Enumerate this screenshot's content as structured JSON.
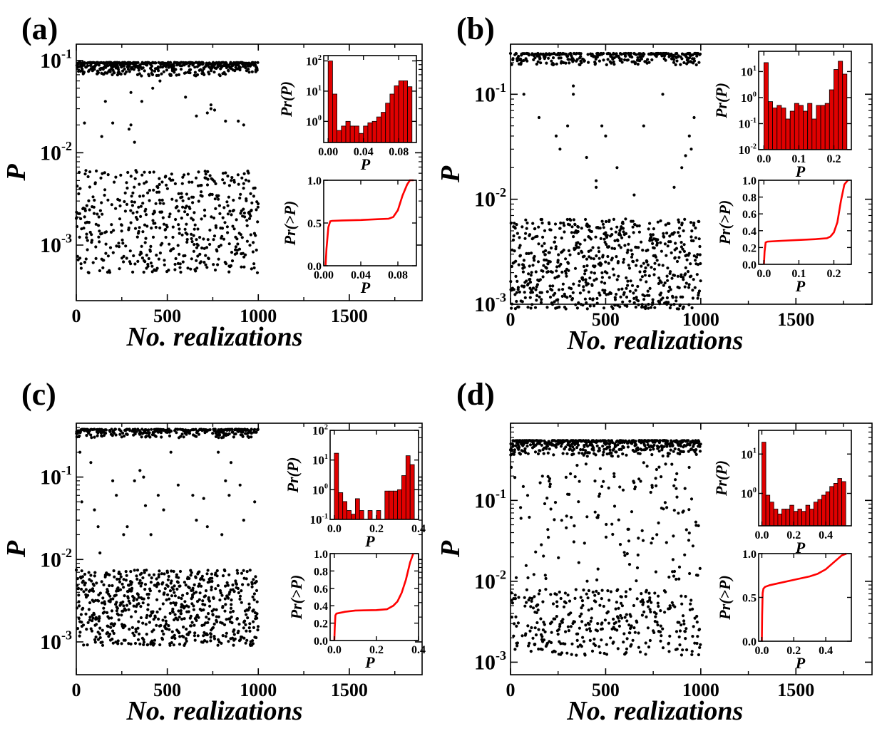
{
  "panel_labels": [
    "(a)",
    "(b)",
    "(c)",
    "(d)"
  ],
  "main_xlabel": "No. realizations",
  "main_ylabel": "P",
  "hist_ylabel": "Pr(P)",
  "cdf_ylabel": "Pr(>P)",
  "inset_xlabel": "P",
  "colors": {
    "bar_fill": "#e00000",
    "cdf_line": "#ff0000",
    "points": "#000000",
    "axes": "#000000"
  },
  "chart_data": [
    {
      "type": "scatter",
      "panel": "(a)",
      "xlabel": "No. realizations",
      "ylabel": "P",
      "xlim": [
        0,
        1900
      ],
      "x_ticks": [
        "0",
        "500",
        "1000",
        "1500"
      ],
      "ylog": true,
      "ylim": [
        0.00025,
        0.15
      ],
      "y_ticks": [
        {
          "v": 0.001,
          "t": "10^-3"
        },
        {
          "v": 0.01,
          "t": "10^-2"
        },
        {
          "v": 0.1,
          "t": "10^-1"
        }
      ],
      "n_points": 1000,
      "top_band": [
        0.068,
        0.095
      ],
      "bottom_band": [
        0.0005,
        0.0065
      ],
      "middle_points": [
        [
          45,
          0.021
        ],
        [
          140,
          0.015
        ],
        [
          160,
          0.036
        ],
        [
          200,
          0.021
        ],
        [
          290,
          0.018
        ],
        [
          300,
          0.02
        ],
        [
          320,
          0.013
        ],
        [
          360,
          0.036
        ],
        [
          460,
          0.06
        ],
        [
          660,
          0.025
        ],
        [
          720,
          0.027
        ],
        [
          740,
          0.03
        ],
        [
          760,
          0.029
        ],
        [
          740,
          0.033
        ],
        [
          820,
          0.022
        ],
        [
          890,
          0.022
        ],
        [
          920,
          0.02
        ],
        [
          420,
          0.05
        ],
        [
          300,
          0.045
        ],
        [
          600,
          0.04
        ]
      ],
      "hist": {
        "type": "bar",
        "xlim": [
          -0.005,
          0.1
        ],
        "x_ticks": [
          "0.00",
          "0.04",
          "0.08"
        ],
        "ylog": true,
        "ylim": [
          0.2,
          150
        ],
        "y_ticks": [
          {
            "v": 1,
            "t": "10^0"
          },
          {
            "v": 10,
            "t": "10^1"
          },
          {
            "v": 100,
            "t": "10^2"
          }
        ],
        "bin_width": 0.005,
        "bin_starts": [
          0.0,
          0.005,
          0.01,
          0.015,
          0.02,
          0.025,
          0.03,
          0.035,
          0.04,
          0.045,
          0.05,
          0.055,
          0.06,
          0.065,
          0.07,
          0.075,
          0.08,
          0.085,
          0.09
        ],
        "values": [
          100,
          8,
          0.5,
          0.7,
          1,
          0.7,
          0.7,
          0.4,
          0.7,
          0.9,
          1,
          1.4,
          2,
          4,
          8,
          15,
          22,
          22,
          14
        ],
        "xlabel": "P",
        "ylabel": "Pr(P)"
      },
      "cdf": {
        "type": "line",
        "xlim": [
          0,
          0.1
        ],
        "x_ticks": [
          "0.00",
          "0.04",
          "0.08"
        ],
        "ylim": [
          0,
          1
        ],
        "y_ticks": [
          "0.0",
          "0.5",
          "1.0"
        ],
        "x": [
          0.002,
          0.003,
          0.005,
          0.007,
          0.009,
          0.02,
          0.04,
          0.06,
          0.07,
          0.075,
          0.08,
          0.085,
          0.09,
          0.093,
          0.097
        ],
        "y": [
          0.0,
          0.2,
          0.45,
          0.52,
          0.525,
          0.53,
          0.535,
          0.545,
          0.55,
          0.57,
          0.65,
          0.82,
          0.95,
          1.0,
          1.0
        ],
        "xlabel": "P",
        "ylabel": "Pr(>P)"
      }
    },
    {
      "type": "scatter",
      "panel": "(b)",
      "xlabel": "No. realizations",
      "ylabel": "P",
      "xlim": [
        0,
        1900
      ],
      "x_ticks": [
        "0",
        "500",
        "1000",
        "1500"
      ],
      "ylog": true,
      "ylim": [
        0.001,
        0.3
      ],
      "y_ticks": [
        {
          "v": 0.001,
          "t": "10^-3"
        },
        {
          "v": 0.01,
          "t": "10^-2"
        },
        {
          "v": 0.1,
          "t": "10^-1"
        }
      ],
      "n_points": 1000,
      "top_band": [
        0.19,
        0.245
      ],
      "bottom_band": [
        0.0009,
        0.0065
      ],
      "middle_points": [
        [
          70,
          0.1
        ],
        [
          150,
          0.06
        ],
        [
          240,
          0.04
        ],
        [
          260,
          0.03
        ],
        [
          300,
          0.05
        ],
        [
          330,
          0.1
        ],
        [
          400,
          0.025
        ],
        [
          450,
          0.013
        ],
        [
          480,
          0.05
        ],
        [
          560,
          0.02
        ],
        [
          650,
          0.011
        ],
        [
          700,
          0.05
        ],
        [
          800,
          0.1
        ],
        [
          860,
          0.013
        ],
        [
          900,
          0.02
        ],
        [
          920,
          0.026
        ],
        [
          950,
          0.03
        ],
        [
          940,
          0.04
        ],
        [
          965,
          0.06
        ],
        [
          330,
          0.12
        ],
        [
          450,
          0.015
        ],
        [
          500,
          0.04
        ]
      ],
      "hist": {
        "type": "bar",
        "xlim": [
          -0.015,
          0.25
        ],
        "x_ticks": [
          "0.0",
          "0.1",
          "0.2"
        ],
        "ylog": true,
        "ylim": [
          0.01,
          60
        ],
        "y_ticks": [
          {
            "v": 0.01,
            "t": "10^-2"
          },
          {
            "v": 0.1,
            "t": "10^-1"
          },
          {
            "v": 1,
            "t": "10^0"
          },
          {
            "v": 10,
            "t": "10^1"
          }
        ],
        "bin_width": 0.0125,
        "bin_starts": [
          0.0,
          0.0125,
          0.025,
          0.0375,
          0.05,
          0.0625,
          0.075,
          0.0875,
          0.1,
          0.1125,
          0.125,
          0.1375,
          0.15,
          0.1625,
          0.175,
          0.1875,
          0.2,
          0.2125,
          0.225
        ],
        "values": [
          22,
          0.7,
          0.4,
          0.5,
          0.4,
          0.15,
          0.3,
          0.6,
          0.5,
          0.3,
          0.6,
          0.15,
          0.5,
          0.5,
          0.6,
          2,
          12,
          25,
          8
        ],
        "xlabel": "P",
        "ylabel": "Pr(P)"
      },
      "cdf": {
        "type": "line",
        "xlim": [
          -0.015,
          0.25
        ],
        "x_ticks": [
          "0.0",
          "0.1",
          "0.2"
        ],
        "ylim": [
          0,
          1
        ],
        "y_ticks": [
          "0.0",
          "0.2",
          "0.4",
          "0.6",
          "0.8",
          "1.0"
        ],
        "x": [
          0.0,
          0.002,
          0.005,
          0.01,
          0.05,
          0.1,
          0.15,
          0.18,
          0.19,
          0.2,
          0.21,
          0.22,
          0.23,
          0.24
        ],
        "y": [
          0.0,
          0.15,
          0.26,
          0.27,
          0.28,
          0.29,
          0.3,
          0.31,
          0.33,
          0.38,
          0.5,
          0.75,
          0.95,
          1.0
        ],
        "xlabel": "P",
        "ylabel": "Pr(>P)"
      }
    },
    {
      "type": "scatter",
      "panel": "(c)",
      "xlabel": "No. realizations",
      "ylabel": "P",
      "xlim": [
        0,
        1900
      ],
      "x_ticks": [
        "0",
        "500",
        "1000",
        "1500"
      ],
      "ylog": true,
      "ylim": [
        0.0004,
        0.45
      ],
      "y_ticks": [
        {
          "v": 0.001,
          "t": "10^-3"
        },
        {
          "v": 0.01,
          "t": "10^-2"
        },
        {
          "v": 0.1,
          "t": "10^-1"
        }
      ],
      "n_points": 1000,
      "top_band": [
        0.3,
        0.38
      ],
      "bottom_band": [
        0.0009,
        0.0075
      ],
      "middle_points": [
        [
          20,
          0.2
        ],
        [
          30,
          0.05
        ],
        [
          80,
          0.15
        ],
        [
          100,
          0.04
        ],
        [
          120,
          0.025
        ],
        [
          130,
          0.012
        ],
        [
          200,
          0.09
        ],
        [
          220,
          0.06
        ],
        [
          260,
          0.02
        ],
        [
          280,
          0.025
        ],
        [
          320,
          0.09
        ],
        [
          350,
          0.12
        ],
        [
          370,
          0.1
        ],
        [
          380,
          0.045
        ],
        [
          410,
          0.02
        ],
        [
          450,
          0.06
        ],
        [
          480,
          0.04
        ],
        [
          520,
          0.2
        ],
        [
          560,
          0.08
        ],
        [
          640,
          0.06
        ],
        [
          660,
          0.03
        ],
        [
          700,
          0.055
        ],
        [
          720,
          0.025
        ],
        [
          780,
          0.2
        ],
        [
          800,
          0.02
        ],
        [
          820,
          0.09
        ],
        [
          840,
          0.06
        ],
        [
          850,
          0.15
        ],
        [
          900,
          0.08
        ],
        [
          920,
          0.03
        ],
        [
          980,
          0.05
        ]
      ],
      "hist": {
        "type": "bar",
        "xlim": [
          -0.02,
          0.4
        ],
        "x_ticks": [
          "0.0",
          "0.2",
          "0.4"
        ],
        "ylog": true,
        "ylim": [
          0.1,
          100
        ],
        "y_ticks": [
          {
            "v": 0.1,
            "t": "10^-1"
          },
          {
            "v": 1,
            "t": "10^0"
          },
          {
            "v": 10,
            "t": "10^1"
          },
          {
            "v": 100,
            "t": "10^2"
          }
        ],
        "bin_width": 0.02,
        "bin_starts": [
          0.0,
          0.02,
          0.04,
          0.06,
          0.08,
          0.1,
          0.12,
          0.16,
          0.2,
          0.24,
          0.26,
          0.28,
          0.3,
          0.32,
          0.34,
          0.36
        ],
        "values": [
          17,
          0.8,
          0.4,
          0.2,
          0.15,
          0.5,
          0.2,
          0.2,
          0.2,
          0.9,
          0.9,
          0.9,
          1,
          3,
          14,
          7
        ],
        "xlabel": "P",
        "ylabel": "Pr(P)"
      },
      "cdf": {
        "type": "line",
        "xlim": [
          -0.02,
          0.4
        ],
        "x_ticks": [
          "0.0",
          "0.2",
          "0.4"
        ],
        "ylim": [
          0,
          1
        ],
        "y_ticks": [
          "0.0",
          "0.2",
          "0.4",
          "0.6",
          "0.8",
          "1.0"
        ],
        "x": [
          0.0,
          0.002,
          0.005,
          0.01,
          0.05,
          0.1,
          0.2,
          0.25,
          0.28,
          0.3,
          0.32,
          0.34,
          0.36,
          0.375
        ],
        "y": [
          0.0,
          0.15,
          0.29,
          0.31,
          0.33,
          0.345,
          0.35,
          0.36,
          0.4,
          0.45,
          0.55,
          0.7,
          0.9,
          1.0
        ],
        "xlabel": "P",
        "ylabel": "Pr(>P)"
      }
    },
    {
      "type": "scatter",
      "panel": "(d)",
      "xlabel": "No. realizations",
      "ylabel": "P",
      "xlim": [
        0,
        1900
      ],
      "x_ticks": [
        "0",
        "500",
        "1000",
        "1500"
      ],
      "ylog": true,
      "ylim": [
        0.0007,
        0.9
      ],
      "y_ticks": [
        {
          "v": 0.001,
          "t": "10^-3"
        },
        {
          "v": 0.01,
          "t": "10^-2"
        },
        {
          "v": 0.1,
          "t": "10^-1"
        }
      ],
      "n_points": 1000,
      "top_band": [
        0.35,
        0.55
      ],
      "bottom_band": [
        0.0012,
        0.008
      ],
      "mid_band": [
        0.01,
        0.3
      ],
      "hist": {
        "type": "bar",
        "xlim": [
          -0.02,
          0.56
        ],
        "x_ticks": [
          "0.0",
          "0.2",
          "0.4"
        ],
        "ylog": true,
        "ylim": [
          0.15,
          40
        ],
        "y_ticks": [
          {
            "v": 1,
            "t": "10^0"
          },
          {
            "v": 10,
            "t": "10^1"
          }
        ],
        "bin_width": 0.025,
        "bin_starts": [
          0.0,
          0.025,
          0.05,
          0.075,
          0.1,
          0.125,
          0.15,
          0.175,
          0.2,
          0.225,
          0.25,
          0.275,
          0.3,
          0.325,
          0.35,
          0.375,
          0.4,
          0.425,
          0.45,
          0.475,
          0.5
        ],
        "values": [
          20,
          0.9,
          0.6,
          0.4,
          0.3,
          0.4,
          0.4,
          0.5,
          0.35,
          0.4,
          0.35,
          0.5,
          0.4,
          0.6,
          0.7,
          0.9,
          1.1,
          1.5,
          1.8,
          2.4,
          2
        ],
        "xlabel": "P",
        "ylabel": "Pr(P)"
      },
      "cdf": {
        "type": "line",
        "xlim": [
          -0.02,
          0.56
        ],
        "x_ticks": [
          "0.0",
          "0.2",
          "0.4"
        ],
        "ylim": [
          0,
          1
        ],
        "y_ticks": [
          "0.0",
          "0.5",
          "1.0"
        ],
        "x": [
          0.0,
          0.002,
          0.005,
          0.01,
          0.02,
          0.05,
          0.1,
          0.2,
          0.3,
          0.35,
          0.4,
          0.45,
          0.5,
          0.53
        ],
        "y": [
          0.0,
          0.3,
          0.55,
          0.6,
          0.62,
          0.64,
          0.66,
          0.7,
          0.74,
          0.77,
          0.82,
          0.9,
          0.98,
          1.0
        ],
        "xlabel": "P",
        "ylabel": "Pr(>P)"
      }
    }
  ]
}
